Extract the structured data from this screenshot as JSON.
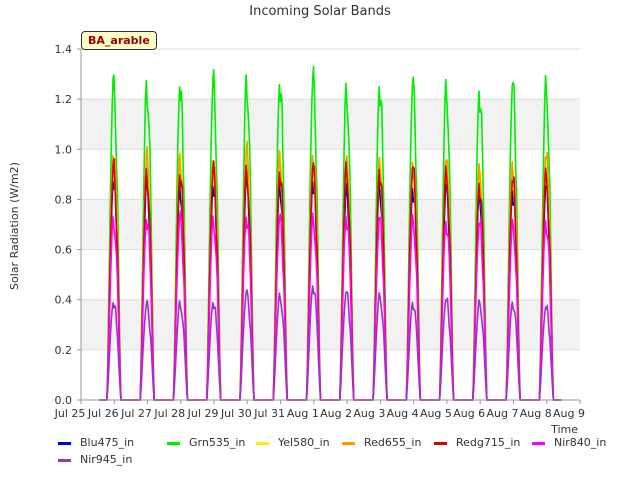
{
  "chart_data": {
    "type": "line",
    "title": "Incoming Solar Bands",
    "xlabel": "Time",
    "ylabel": "Solar Radiation (W/m2)",
    "annotation": "BA_arable",
    "ylim": [
      0,
      1.4
    ],
    "y_ticks": [
      "0.0",
      "0.2",
      "0.4",
      "0.6",
      "0.8",
      "1.0",
      "1.2",
      "1.4"
    ],
    "x_ticks": [
      "Jul 25",
      "Jul 26",
      "Jul 27",
      "Jul 28",
      "Jul 29",
      "Jul 30",
      "Jul 31",
      "Aug 1",
      "Aug 2",
      "Aug 3",
      "Aug 4",
      "Aug 5",
      "Aug 6",
      "Aug 7",
      "Aug 8",
      "Aug 9"
    ],
    "grid": "horizontal bands",
    "legend_position": "bottom",
    "days": [
      "Jul 25",
      "Jul 26",
      "Jul 27",
      "Jul 28",
      "Jul 29",
      "Jul 30",
      "Jul 31",
      "Aug 1",
      "Aug 2",
      "Aug 3",
      "Aug 4",
      "Aug 5",
      "Aug 6",
      "Aug 7"
    ],
    "series": [
      {
        "name": "Blu475_in",
        "color": "#0000cc",
        "daily_peak": [
          0.92,
          0.91,
          0.9,
          0.9,
          0.93,
          0.91,
          0.92,
          0.87,
          0.9,
          0.89,
          0.89,
          0.87,
          0.88,
          0.89
        ]
      },
      {
        "name": "Grn535_in",
        "color": "#00ee00",
        "daily_peak": [
          1.33,
          1.33,
          1.32,
          1.33,
          1.35,
          1.33,
          1.34,
          1.31,
          1.32,
          1.32,
          1.32,
          1.3,
          1.32,
          1.33
        ]
      },
      {
        "name": "Yel580_in",
        "color": "#ffee00",
        "daily_peak": [
          1.0,
          1.0,
          1.0,
          0.99,
          1.02,
          1.0,
          1.0,
          0.98,
          0.98,
          0.98,
          0.98,
          0.95,
          0.98,
          1.0
        ]
      },
      {
        "name": "Red655_in",
        "color": "#ff9900",
        "daily_peak": [
          1.03,
          1.02,
          1.02,
          1.01,
          1.04,
          1.03,
          1.03,
          1.0,
          1.0,
          1.0,
          1.0,
          0.97,
          1.0,
          1.02
        ]
      },
      {
        "name": "Redg715_in",
        "color": "#dd0000",
        "daily_peak": [
          0.97,
          0.96,
          0.95,
          0.96,
          0.97,
          0.96,
          0.97,
          0.98,
          0.97,
          0.97,
          0.96,
          0.91,
          0.92,
          0.95
        ]
      },
      {
        "name": "Nir840_in",
        "color": "#ff00ff",
        "daily_peak": [
          0.76,
          0.76,
          0.76,
          0.76,
          0.77,
          0.76,
          0.77,
          0.77,
          0.76,
          0.76,
          0.75,
          0.74,
          0.74,
          0.75
        ]
      },
      {
        "name": "Nir945_in",
        "color": "#9933cc",
        "daily_peak": [
          0.41,
          0.4,
          0.41,
          0.41,
          0.45,
          0.44,
          0.48,
          0.45,
          0.44,
          0.41,
          0.42,
          0.41,
          0.41,
          0.39
        ]
      }
    ]
  }
}
